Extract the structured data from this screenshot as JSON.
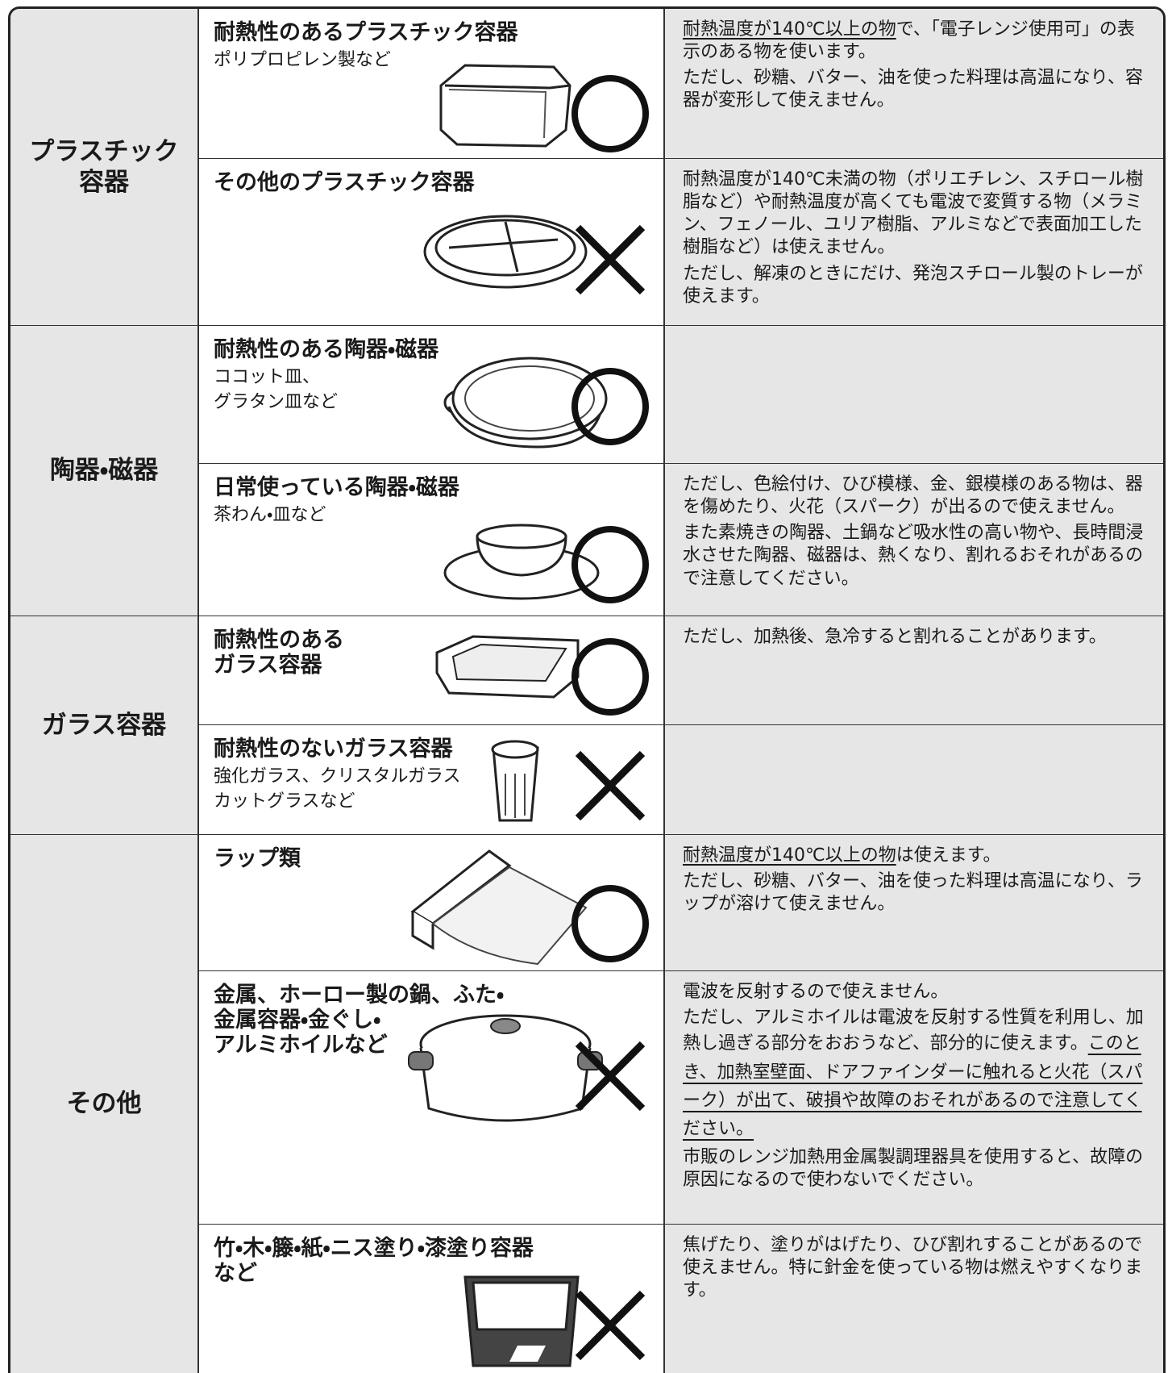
{
  "categories": [
    {
      "label": [
        "プラスチック",
        "容器"
      ],
      "items": [
        {
          "title": [
            "耐熱性のあるプラスチック容器"
          ],
          "subtitle": [
            "ポリプロピレン製など"
          ],
          "notes": [
            [
              "耐熱温度が140℃以上の物",
              "で、「電子レンジ使用可」の表示のある物を使います。"
            ],
            [
              "ただし、砂糖、バター、油を使った料理は高温になり、容器が変形して使えません。"
            ]
          ]
        },
        {
          "title": [
            "その他のプラスチック容器"
          ],
          "subtitle": [],
          "notes": [
            [
              "耐熱温度が140℃未満の物（ポリエチレン、スチロール樹脂など）や耐熱温度が高くても電波で変質する物（メラミン、フェノール、ユリア樹脂、アルミなどで表面加工した樹脂など）は使えません。"
            ],
            [
              "ただし、解凍のときにだけ、発泡スチロール製のトレーが使えます。"
            ]
          ]
        }
      ]
    },
    {
      "label": [
        "陶器・磁器"
      ],
      "items": [
        {
          "title": [
            "耐熱性のある陶器・磁器"
          ],
          "subtitle": [
            "ココット皿、",
            "グラタン皿など"
          ],
          "notes": []
        },
        {
          "title": [
            "日常使っている陶器・磁器"
          ],
          "subtitle": [
            "茶わん・皿など"
          ],
          "notes": [
            [
              "ただし、色絵付け、ひび模様、金、銀模様のある物は、器を傷めたり、火花（スパーク）が出るので使えません。"
            ],
            [
              "また素焼きの陶器、土鍋など吸水性の高い物や、長時間浸水させた陶器、磁器は、熱くなり、割れるおそれがあるので注意してください。"
            ]
          ]
        }
      ]
    },
    {
      "label": [
        "ガラス容器"
      ],
      "items": [
        {
          "title": [
            "耐熱性のある",
            "ガラス容器"
          ],
          "subtitle": [],
          "notes": [
            [
              "ただし、加熱後、急冷すると割れることがあります。"
            ]
          ]
        },
        {
          "title": [
            "耐熱性のないガラス容器"
          ],
          "subtitle": [
            "強化ガラス、クリスタルガラス",
            "カットグラスなど"
          ],
          "notes": []
        }
      ]
    },
    {
      "label": [
        "その他"
      ],
      "items": [
        {
          "title": [
            "ラップ類"
          ],
          "subtitle": [],
          "notes": [
            [
              "耐熱温度が140℃以上の物",
              "は使えます。"
            ],
            [
              "ただし、砂糖、バター、油を使った料理は高温になり、ラップが溶けて使えません。"
            ]
          ]
        },
        {
          "title": [
            "金属、ホーロー製の鍋、ふた・",
            "金属容器・金ぐし・",
            "アルミホイルなど"
          ],
          "subtitle": [],
          "notes": [
            [
              "電波を反射するので使えません。"
            ],
            [
              "ただし、アルミホイルは電波を反射する性質を利用し、加熱し過ぎる部分をおおうなど、部分的に使えます。",
              "このとき、加熱室壁面、ドアファインダーに触れると火花（スパーク）が出て、破損や故障のおそれがあるので注意してください。"
            ],
            [
              "市販のレンジ加熱用金属製調理器具を使用すると、故障の原因になるので使わないでください。"
            ]
          ]
        },
        {
          "title": [
            "竹・木・籐・紙・ニス塗り・漆塗り容器",
            "など"
          ],
          "subtitle": [],
          "notes": [
            [
              "焦げたり、塗りがはげたり、ひび割れすることがあるので使えません。特に針金を使っている物は燃えやすくなります。"
            ]
          ]
        }
      ]
    }
  ]
}
